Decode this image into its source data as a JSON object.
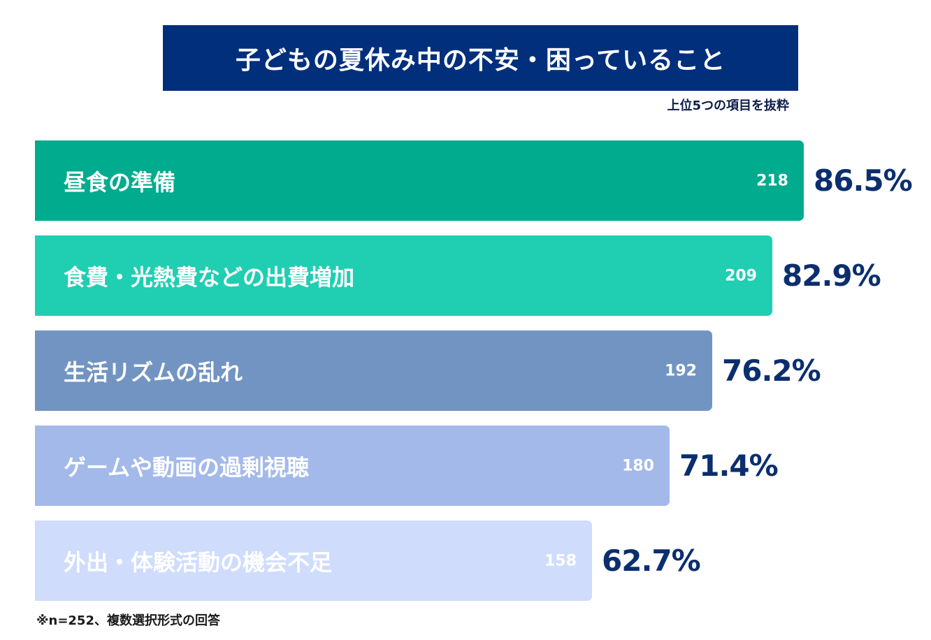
{
  "chart_data": {
    "type": "bar",
    "orientation": "horizontal",
    "title": "子どもの夏休み中の不安・困っていること",
    "subtitle": "上位5つの項目を抜粋",
    "footnote": "※n=252、複数選択形式の回答",
    "n": 252,
    "categories": [
      "昼食の準備",
      "食費・光熱費などの出費増加",
      "生活リズムの乱れ",
      "ゲームや動画の過剰視聴",
      "外出・体験活動の機会不足"
    ],
    "counts": [
      218,
      209,
      192,
      180,
      158
    ],
    "percent_labels": [
      "86.5%",
      "82.9%",
      "76.2%",
      "71.4%",
      "62.7%"
    ],
    "colors": [
      "#00ab8e",
      "#20ceb2",
      "#7294c2",
      "#a2b9ea",
      "#cfdcfc"
    ],
    "label_colors": [
      "#ffffff",
      "#ffffff",
      "#ffffff",
      "#ffffff",
      "#ffffff"
    ]
  }
}
